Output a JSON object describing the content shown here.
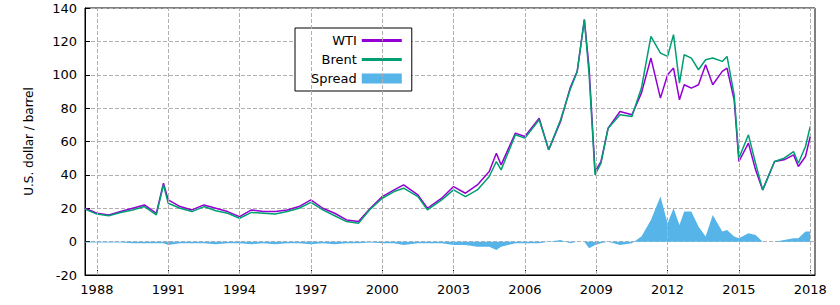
{
  "chart_data": {
    "type": "line",
    "ylabel": "U.S. dollar / barrel",
    "x": [
      1987.5,
      1988.0,
      1988.5,
      1989.0,
      1989.5,
      1990.0,
      1990.5,
      1990.8,
      1991.0,
      1991.5,
      1992.0,
      1992.5,
      1993.0,
      1993.5,
      1994.0,
      1994.5,
      1995.0,
      1995.5,
      1996.0,
      1996.5,
      1997.0,
      1997.5,
      1998.0,
      1998.5,
      1999.0,
      1999.5,
      2000.0,
      2000.5,
      2000.9,
      2001.5,
      2001.9,
      2002.5,
      2003.0,
      2003.5,
      2004.0,
      2004.5,
      2004.8,
      2005.0,
      2005.6,
      2006.0,
      2006.6,
      2007.0,
      2007.5,
      2007.9,
      2008.2,
      2008.5,
      2008.7,
      2008.95,
      2009.2,
      2009.5,
      2010.0,
      2010.5,
      2010.9,
      2011.3,
      2011.7,
      2012.0,
      2012.25,
      2012.5,
      2012.7,
      2013.0,
      2013.3,
      2013.6,
      2013.9,
      2014.3,
      2014.5,
      2014.8,
      2015.0,
      2015.4,
      2015.7,
      2016.0,
      2016.5,
      2016.9,
      2017.3,
      2017.5,
      2017.8,
      2018.0
    ],
    "series": [
      {
        "name": "WTI",
        "color": "#9400d3",
        "values": [
          20,
          17,
          16,
          18,
          20,
          22,
          17,
          35,
          25,
          21,
          19,
          22,
          20,
          18,
          15,
          19,
          18,
          18,
          19,
          21,
          25,
          20,
          17,
          13,
          12,
          20,
          27,
          31,
          34,
          28,
          20,
          26,
          33,
          29,
          34,
          42,
          53,
          46,
          65,
          63,
          74,
          55,
          72,
          92,
          102,
          133,
          104,
          42,
          48,
          68,
          78,
          76,
          89,
          110,
          86,
          100,
          104,
          85,
          94,
          92,
          94,
          106,
          94,
          102,
          104,
          85,
          48,
          59,
          43,
          31,
          48,
          49,
          52,
          45,
          51,
          63
        ]
      },
      {
        "name": "Brent",
        "color": "#009e73",
        "values": [
          19.5,
          16.5,
          15.5,
          17.5,
          19,
          21,
          16,
          34,
          23,
          20,
          18,
          21,
          18.5,
          17,
          14,
          17.5,
          17,
          16.5,
          18,
          20,
          23.5,
          19,
          15.5,
          12,
          11,
          19.5,
          26,
          30,
          32,
          27,
          19,
          25,
          31,
          27,
          31,
          39,
          48,
          43,
          64,
          62,
          73,
          55,
          73,
          91,
          102,
          133,
          100,
          40,
          47,
          68,
          76,
          75,
          92,
          123,
          113,
          111,
          124,
          95,
          112,
          110,
          103,
          109,
          110,
          108,
          111,
          88,
          50,
          64,
          47,
          31,
          48,
          50,
          54,
          47,
          57,
          69
        ]
      },
      {
        "name": "Spread",
        "type": "area",
        "color": "#56b4e9",
        "values": [
          -0.5,
          -0.5,
          -0.5,
          -0.5,
          -1,
          -1,
          -1,
          -1,
          -2,
          -1,
          -1,
          -1,
          -1.5,
          -1,
          -1,
          -1.5,
          -1,
          -1.5,
          -1,
          -1,
          -1.5,
          -1,
          -1.5,
          -1,
          -1,
          -0.5,
          -1,
          -1,
          -2,
          -1,
          -1,
          -1,
          -2,
          -2,
          -3,
          -3,
          -5,
          -3,
          -1,
          -1,
          -1,
          0,
          1,
          -1,
          0,
          0,
          -4,
          -2,
          -1,
          0,
          -2,
          -1,
          3,
          13,
          27,
          11,
          20,
          10,
          18,
          18,
          9,
          3,
          16,
          6,
          7,
          3,
          2,
          5,
          4,
          0,
          0,
          1,
          2,
          2,
          6,
          6
        ]
      }
    ],
    "xlim": [
      1987.5,
      2018.2
    ],
    "xticks": [
      1988,
      1991,
      1994,
      1997,
      2000,
      2003,
      2006,
      2009,
      2012,
      2015,
      2018
    ],
    "ylim": [
      -20,
      140
    ],
    "yticks": [
      -20,
      0,
      20,
      40,
      60,
      80,
      100,
      120,
      140
    ],
    "grid": true,
    "legend": "top"
  }
}
